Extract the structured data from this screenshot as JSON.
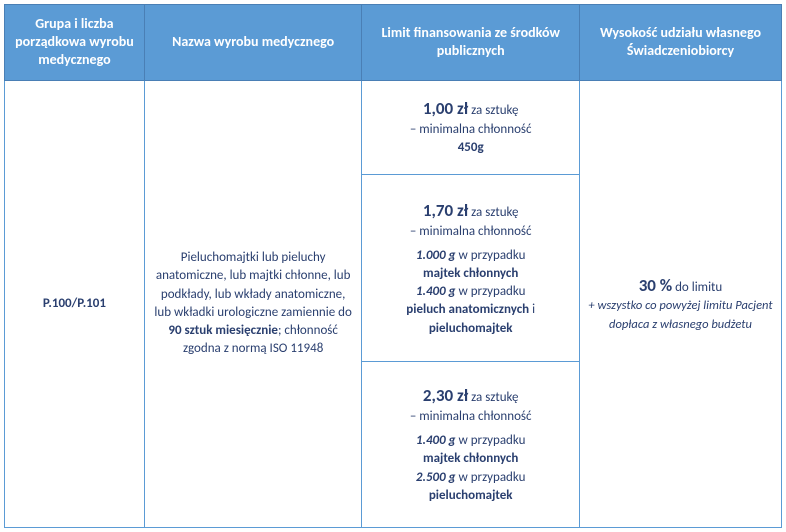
{
  "headers": {
    "col1": "Grupa i liczba porządkowa wyrobu medycznego",
    "col2": "Nazwa wyrobu medycznego",
    "col3": "Limit finansowania ze środków publicznych",
    "col4": "Wysokość udziału własnego Świadczeniobiorcy"
  },
  "code": "P.100/P.101",
  "description": {
    "line1": "Pieluchomajtki lub pieluchy anatomiczne, lub majtki chłonne, lub podkłady, lub wkłady anatomiczne, lub wkładki urologiczne zamiennie do ",
    "bold1": "90 sztuk miesięcznie",
    "line2": "; chłonność zgodna z normą ISO 11948"
  },
  "limits": {
    "tier1": {
      "price": "1,00 zł",
      "unit": " za sztukę",
      "sub": "– minimalna chłonność",
      "weight": "450g"
    },
    "tier2": {
      "price": "1,70 zł",
      "unit": " za sztukę",
      "sub": "– minimalna chłonność",
      "w1": "1.000 g",
      "w1case": " w przypadku ",
      "w1item": "majtek chłonnych",
      "w2": "1.400 g",
      "w2case": " w przypadku ",
      "w2item": "pieluch anatomicznych",
      "and": " i ",
      "w2item2": "pieluchomajtek"
    },
    "tier3": {
      "price": "2,30 zł",
      "unit": " za sztukę",
      "sub": "– minimalna chłonność",
      "w1": "1.400 g",
      "w1case": " w przypadku ",
      "w1item": "majtek chłonnych",
      "w2": "2.500 g",
      "w2case": " w przypadku ",
      "w2item": "pieluchomajtek"
    }
  },
  "share": {
    "pct": "30 %",
    "pct_suffix": " do limitu",
    "note": "+ wszystko co powyżej limitu Pacjent dopłaca z własnego budżetu"
  }
}
